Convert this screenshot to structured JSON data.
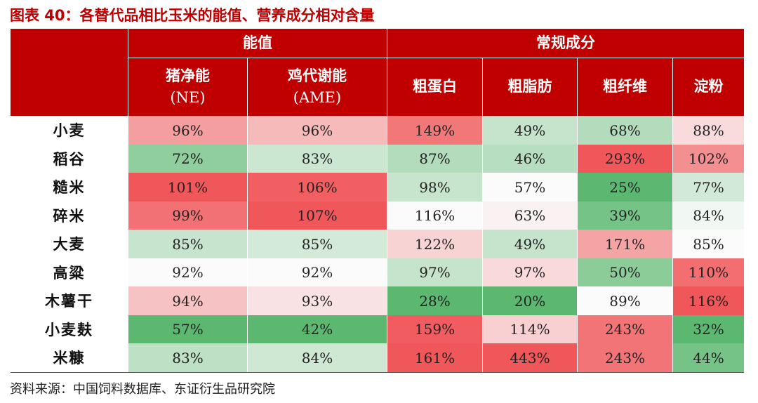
{
  "title": "图表 40：各替代品相比玉米的能值、营养成分相对含量",
  "source": "资料来源：中国饲料数据库、东证衍生品研究院",
  "chart_data": {
    "type": "table",
    "groups": [
      {
        "label": "能值",
        "span": 2
      },
      {
        "label": "常规成分",
        "span": 4
      }
    ],
    "columns": [
      {
        "line1": "猪净能",
        "line2": "(NE)"
      },
      {
        "line1": "鸡代谢能",
        "line2": "(AME)"
      },
      {
        "line1": "粗蛋白",
        "line2": ""
      },
      {
        "line1": "粗脂肪",
        "line2": ""
      },
      {
        "line1": "粗纤维",
        "line2": ""
      },
      {
        "line1": "淀粉",
        "line2": ""
      }
    ],
    "rows": [
      {
        "name": "小麦",
        "values": [
          96,
          96,
          149,
          49,
          68,
          88
        ]
      },
      {
        "name": "稻谷",
        "values": [
          72,
          83,
          87,
          46,
          293,
          102
        ]
      },
      {
        "name": "糙米",
        "values": [
          101,
          106,
          98,
          57,
          25,
          77
        ]
      },
      {
        "name": "碎米",
        "values": [
          99,
          107,
          116,
          63,
          39,
          84
        ]
      },
      {
        "name": "大麦",
        "values": [
          85,
          85,
          122,
          49,
          171,
          85
        ]
      },
      {
        "name": "高粱",
        "values": [
          92,
          92,
          97,
          97,
          50,
          110
        ]
      },
      {
        "name": "木薯干",
        "values": [
          94,
          93,
          28,
          20,
          89,
          116
        ]
      },
      {
        "name": "小麦麸",
        "values": [
          57,
          42,
          159,
          114,
          243,
          32
        ]
      },
      {
        "name": "米糠",
        "values": [
          83,
          84,
          161,
          443,
          243,
          44
        ]
      }
    ],
    "unit": "%",
    "color_scale": {
      "low": "#5cb870",
      "mid": "#fbfbfb",
      "high": "#f0575a"
    }
  }
}
